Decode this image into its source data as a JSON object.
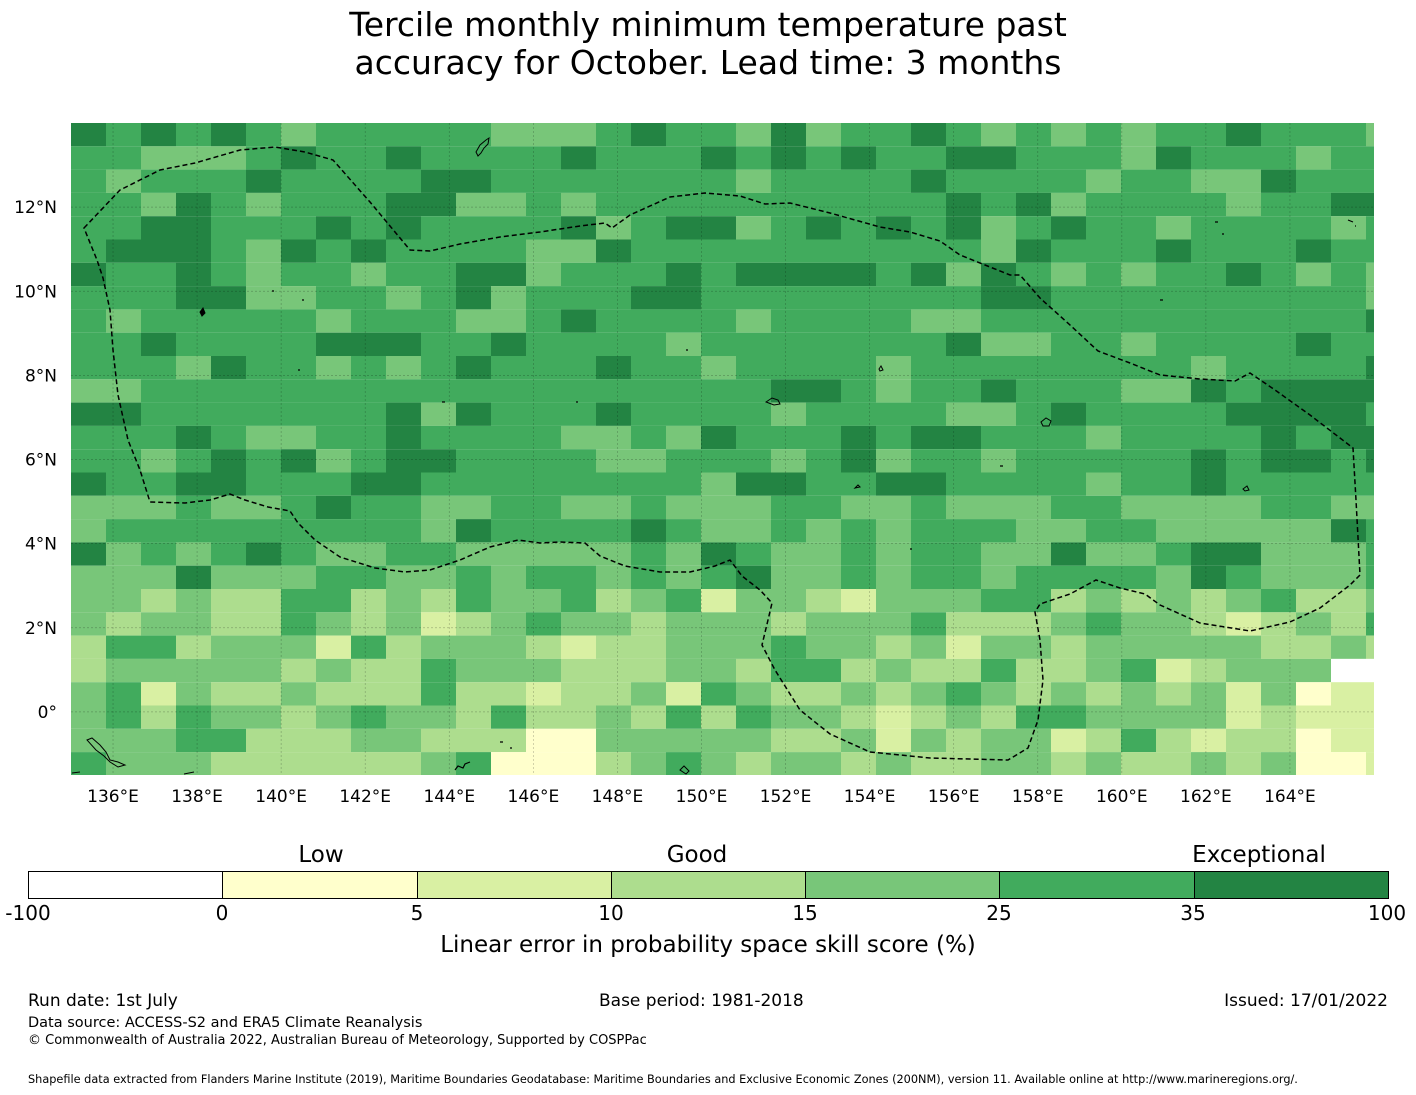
{
  "title": {
    "line1": "Tercile monthly minimum temperature past",
    "line2": "accuracy for October. Lead time: 3 months"
  },
  "map": {
    "lon_range": [
      135,
      166
    ],
    "lat_range": [
      -1.5,
      14
    ],
    "lon_ticks": [
      136,
      138,
      140,
      142,
      144,
      146,
      148,
      150,
      152,
      154,
      156,
      158,
      160,
      162,
      164
    ],
    "lat_ticks": [
      12,
      10,
      8,
      6,
      4,
      2,
      0
    ],
    "lon_tick_labels": [
      "136°E",
      "138°E",
      "140°E",
      "142°E",
      "144°E",
      "146°E",
      "148°E",
      "150°E",
      "152°E",
      "154°E",
      "156°E",
      "158°E",
      "160°E",
      "162°E",
      "164°E"
    ],
    "lat_tick_labels": [
      "12°N",
      "10°N",
      "8°N",
      "6°N",
      "4°N",
      "2°N",
      "0°"
    ],
    "region_outline_color": "#000000",
    "eez_outline_style": "dashed"
  },
  "colorbar": {
    "categories": [
      {
        "label": "Low",
        "value": 0
      },
      {
        "label": "Good",
        "value": 15
      },
      {
        "label": "Exceptional",
        "value": 100
      }
    ],
    "tick_labels": [
      "-100",
      "0",
      "5",
      "10",
      "15",
      "25",
      "35",
      "100"
    ],
    "colors": [
      "#ffffff",
      "#ffffcc",
      "#d9f0a3",
      "#addd8e",
      "#78c679",
      "#41ab5d",
      "#238443"
    ],
    "label": "Linear error in probability space skill score (%)"
  },
  "footer": {
    "run_date": "Run date: 1st July",
    "base_period": "Base period: 1981-2018",
    "issued": "Issued: 17/01/2022",
    "data_source": "Data source: ACCESS-S2 and ERA5 Climate Reanalysis",
    "copyright": "© Commonwealth of Australia 2022, Australian Bureau of Meteorology, Supported by COSPPac",
    "shapefile": "Shapefile data extracted from Flanders Marine Institute (2019), Maritime Boundaries Geodatabase: Maritime Boundaries and Exclusive Economic Zones (200NM), version 11. Available online at http://www.marineregions.org/."
  }
}
